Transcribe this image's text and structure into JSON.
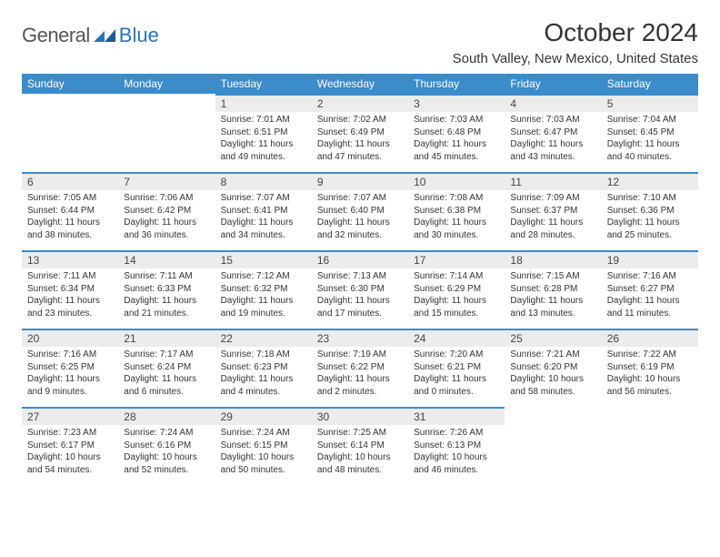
{
  "logo": {
    "text1": "General",
    "text2": "Blue",
    "mark_color": "#2a74b8"
  },
  "title": "October 2024",
  "location": "South Valley, New Mexico, United States",
  "colors": {
    "header_bg": "#3b8ccb",
    "header_text": "#ffffff",
    "daynum_bg": "#ececec",
    "daynum_border": "#3b8ccb",
    "page_bg": "#ffffff"
  },
  "weekdays": [
    "Sunday",
    "Monday",
    "Tuesday",
    "Wednesday",
    "Thursday",
    "Friday",
    "Saturday"
  ],
  "weeks": [
    [
      null,
      null,
      {
        "n": "1",
        "sunrise": "7:01 AM",
        "sunset": "6:51 PM",
        "daylight": "11 hours and 49 minutes."
      },
      {
        "n": "2",
        "sunrise": "7:02 AM",
        "sunset": "6:49 PM",
        "daylight": "11 hours and 47 minutes."
      },
      {
        "n": "3",
        "sunrise": "7:03 AM",
        "sunset": "6:48 PM",
        "daylight": "11 hours and 45 minutes."
      },
      {
        "n": "4",
        "sunrise": "7:03 AM",
        "sunset": "6:47 PM",
        "daylight": "11 hours and 43 minutes."
      },
      {
        "n": "5",
        "sunrise": "7:04 AM",
        "sunset": "6:45 PM",
        "daylight": "11 hours and 40 minutes."
      }
    ],
    [
      {
        "n": "6",
        "sunrise": "7:05 AM",
        "sunset": "6:44 PM",
        "daylight": "11 hours and 38 minutes."
      },
      {
        "n": "7",
        "sunrise": "7:06 AM",
        "sunset": "6:42 PM",
        "daylight": "11 hours and 36 minutes."
      },
      {
        "n": "8",
        "sunrise": "7:07 AM",
        "sunset": "6:41 PM",
        "daylight": "11 hours and 34 minutes."
      },
      {
        "n": "9",
        "sunrise": "7:07 AM",
        "sunset": "6:40 PM",
        "daylight": "11 hours and 32 minutes."
      },
      {
        "n": "10",
        "sunrise": "7:08 AM",
        "sunset": "6:38 PM",
        "daylight": "11 hours and 30 minutes."
      },
      {
        "n": "11",
        "sunrise": "7:09 AM",
        "sunset": "6:37 PM",
        "daylight": "11 hours and 28 minutes."
      },
      {
        "n": "12",
        "sunrise": "7:10 AM",
        "sunset": "6:36 PM",
        "daylight": "11 hours and 25 minutes."
      }
    ],
    [
      {
        "n": "13",
        "sunrise": "7:11 AM",
        "sunset": "6:34 PM",
        "daylight": "11 hours and 23 minutes."
      },
      {
        "n": "14",
        "sunrise": "7:11 AM",
        "sunset": "6:33 PM",
        "daylight": "11 hours and 21 minutes."
      },
      {
        "n": "15",
        "sunrise": "7:12 AM",
        "sunset": "6:32 PM",
        "daylight": "11 hours and 19 minutes."
      },
      {
        "n": "16",
        "sunrise": "7:13 AM",
        "sunset": "6:30 PM",
        "daylight": "11 hours and 17 minutes."
      },
      {
        "n": "17",
        "sunrise": "7:14 AM",
        "sunset": "6:29 PM",
        "daylight": "11 hours and 15 minutes."
      },
      {
        "n": "18",
        "sunrise": "7:15 AM",
        "sunset": "6:28 PM",
        "daylight": "11 hours and 13 minutes."
      },
      {
        "n": "19",
        "sunrise": "7:16 AM",
        "sunset": "6:27 PM",
        "daylight": "11 hours and 11 minutes."
      }
    ],
    [
      {
        "n": "20",
        "sunrise": "7:16 AM",
        "sunset": "6:25 PM",
        "daylight": "11 hours and 9 minutes."
      },
      {
        "n": "21",
        "sunrise": "7:17 AM",
        "sunset": "6:24 PM",
        "daylight": "11 hours and 6 minutes."
      },
      {
        "n": "22",
        "sunrise": "7:18 AM",
        "sunset": "6:23 PM",
        "daylight": "11 hours and 4 minutes."
      },
      {
        "n": "23",
        "sunrise": "7:19 AM",
        "sunset": "6:22 PM",
        "daylight": "11 hours and 2 minutes."
      },
      {
        "n": "24",
        "sunrise": "7:20 AM",
        "sunset": "6:21 PM",
        "daylight": "11 hours and 0 minutes."
      },
      {
        "n": "25",
        "sunrise": "7:21 AM",
        "sunset": "6:20 PM",
        "daylight": "10 hours and 58 minutes."
      },
      {
        "n": "26",
        "sunrise": "7:22 AM",
        "sunset": "6:19 PM",
        "daylight": "10 hours and 56 minutes."
      }
    ],
    [
      {
        "n": "27",
        "sunrise": "7:23 AM",
        "sunset": "6:17 PM",
        "daylight": "10 hours and 54 minutes."
      },
      {
        "n": "28",
        "sunrise": "7:24 AM",
        "sunset": "6:16 PM",
        "daylight": "10 hours and 52 minutes."
      },
      {
        "n": "29",
        "sunrise": "7:24 AM",
        "sunset": "6:15 PM",
        "daylight": "10 hours and 50 minutes."
      },
      {
        "n": "30",
        "sunrise": "7:25 AM",
        "sunset": "6:14 PM",
        "daylight": "10 hours and 48 minutes."
      },
      {
        "n": "31",
        "sunrise": "7:26 AM",
        "sunset": "6:13 PM",
        "daylight": "10 hours and 46 minutes."
      },
      null,
      null
    ]
  ],
  "labels": {
    "sunrise": "Sunrise:",
    "sunset": "Sunset:",
    "daylight": "Daylight:"
  }
}
